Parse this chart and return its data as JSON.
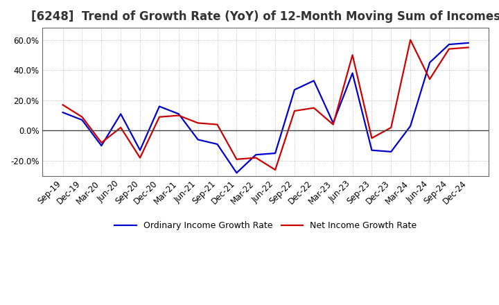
{
  "title": "[6248]  Trend of Growth Rate (YoY) of 12-Month Moving Sum of Incomes",
  "x_labels": [
    "Sep-19",
    "Dec-19",
    "Mar-20",
    "Jun-20",
    "Sep-20",
    "Dec-20",
    "Mar-21",
    "Jun-21",
    "Sep-21",
    "Dec-21",
    "Mar-22",
    "Jun-22",
    "Sep-22",
    "Dec-22",
    "Mar-23",
    "Jun-23",
    "Sep-23",
    "Dec-23",
    "Mar-24",
    "Jun-24",
    "Sep-24",
    "Dec-24"
  ],
  "ordinary_income": [
    12,
    7,
    -10,
    11,
    -13,
    16,
    11,
    -6,
    -9,
    -28,
    -16,
    -15,
    27,
    33,
    5,
    38,
    -13,
    -14,
    3,
    45,
    57,
    58
  ],
  "net_income": [
    17,
    9,
    -8,
    2,
    -18,
    9,
    10,
    5,
    4,
    -19,
    -18,
    -26,
    13,
    15,
    4,
    50,
    -5,
    2,
    60,
    34,
    54,
    55
  ],
  "ordinary_color": "#0000cc",
  "net_color": "#cc0000",
  "ylim": [
    -30,
    68
  ],
  "yticks": [
    -20,
    0,
    20,
    40,
    60
  ],
  "legend_ordinary": "Ordinary Income Growth Rate",
  "legend_net": "Net Income Growth Rate",
  "bg_color": "#ffffff",
  "plot_bg_color": "#ffffff",
  "grid_color": "#999999",
  "line_width": 1.6,
  "title_fontsize": 12,
  "tick_fontsize": 8.5
}
